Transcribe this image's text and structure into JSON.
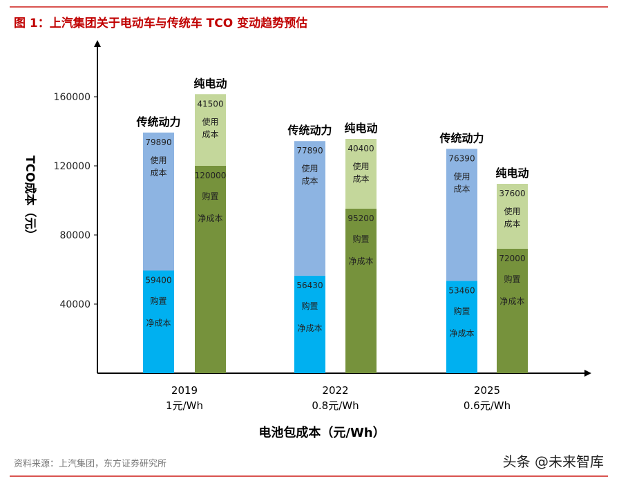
{
  "title": "图 1：上汽集团关于电动车与传统车 TCO 变动趋势预估",
  "source": "资料来源：上汽集团，东方证券研究所",
  "watermark": "头条 @未来智库",
  "chart_data": {
    "type": "bar",
    "stacked": true,
    "ylabel": "TCO成本（元）",
    "xlabel": "电池包成本（元/Wh）",
    "ylim": [
      0,
      180000
    ],
    "yticks": [
      40000,
      80000,
      120000,
      160000
    ],
    "grid": false,
    "categories": [
      {
        "year": "2019",
        "cost": "1元/Wh"
      },
      {
        "year": "2022",
        "cost": "0.8元/Wh"
      },
      {
        "year": "2025",
        "cost": "0.6元/Wh"
      }
    ],
    "groups": [
      {
        "name": "传统动力",
        "segments": [
          {
            "label": "购置\n净成本",
            "values": [
              59400,
              56430,
              53460
            ],
            "color": "#00b0f0"
          },
          {
            "label": "使用\n成本",
            "values": [
              79890,
              77890,
              76390
            ],
            "color": "#8db4e2"
          }
        ]
      },
      {
        "name": "纯电动",
        "segments": [
          {
            "label": "购置\n净成本",
            "values": [
              120000,
              95200,
              72000
            ],
            "color": "#76923c"
          },
          {
            "label": "使用\n成本",
            "values": [
              41500,
              40400,
              37600
            ],
            "color": "#c4d79b"
          }
        ]
      }
    ]
  }
}
